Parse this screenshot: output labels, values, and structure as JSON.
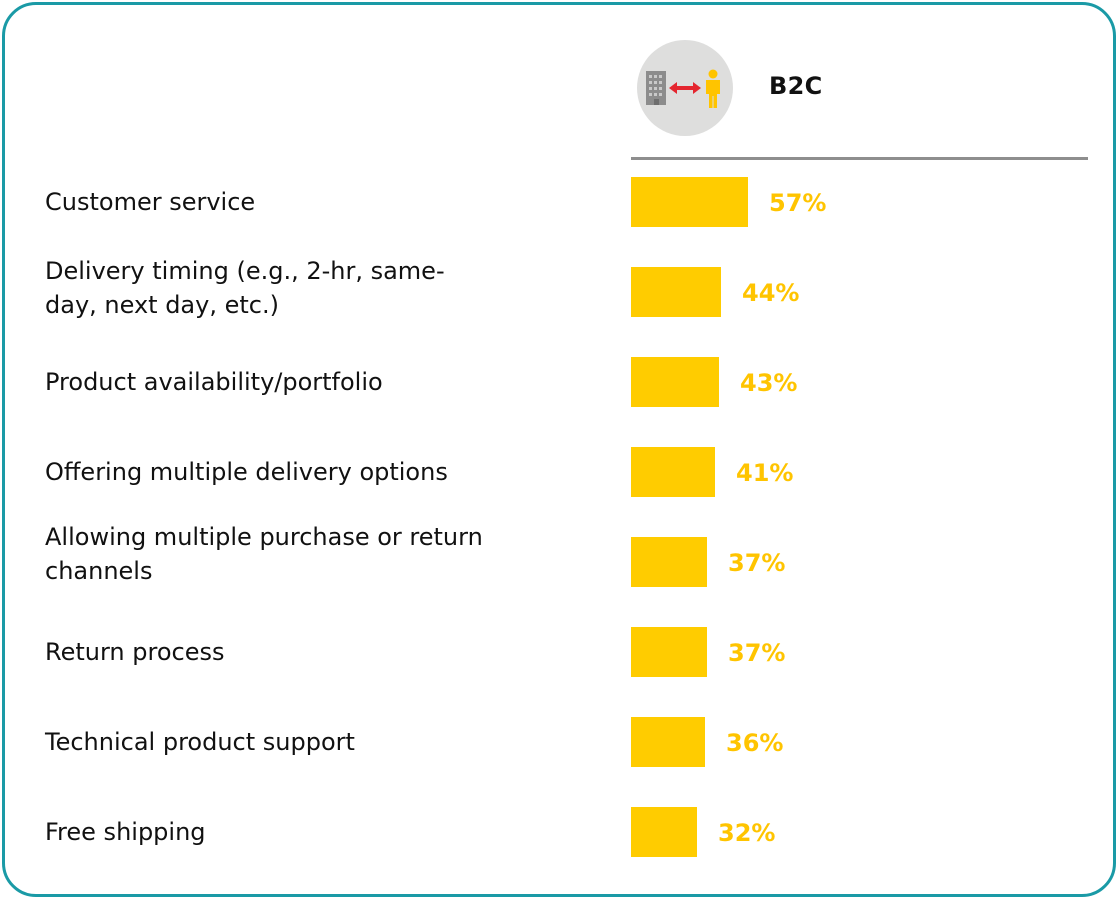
{
  "header": {
    "title": "B2C",
    "icon": "business-to-consumer-icon"
  },
  "colors": {
    "bar": "#ffcc00",
    "value": "#ffc400",
    "border": "#1a9aa6",
    "divider": "#8e8e8e"
  },
  "chart_data": {
    "type": "bar",
    "orientation": "horizontal",
    "categories": [
      "Customer service",
      "Delivery timing (e.g., 2-hr, same-day, next day, etc.)",
      "Product availability/portfolio",
      "Offering multiple delivery options",
      "Allowing multiple purchase or return channels",
      "Return process",
      "Technical product support",
      "Free shipping"
    ],
    "series": [
      {
        "name": "B2C",
        "values": [
          57,
          44,
          43,
          41,
          37,
          37,
          36,
          32
        ],
        "labels": [
          "57%",
          "44%",
          "43%",
          "41%",
          "37%",
          "37%",
          "36%",
          "32%"
        ]
      }
    ],
    "xlim": [
      0,
      100
    ],
    "grid": false
  }
}
